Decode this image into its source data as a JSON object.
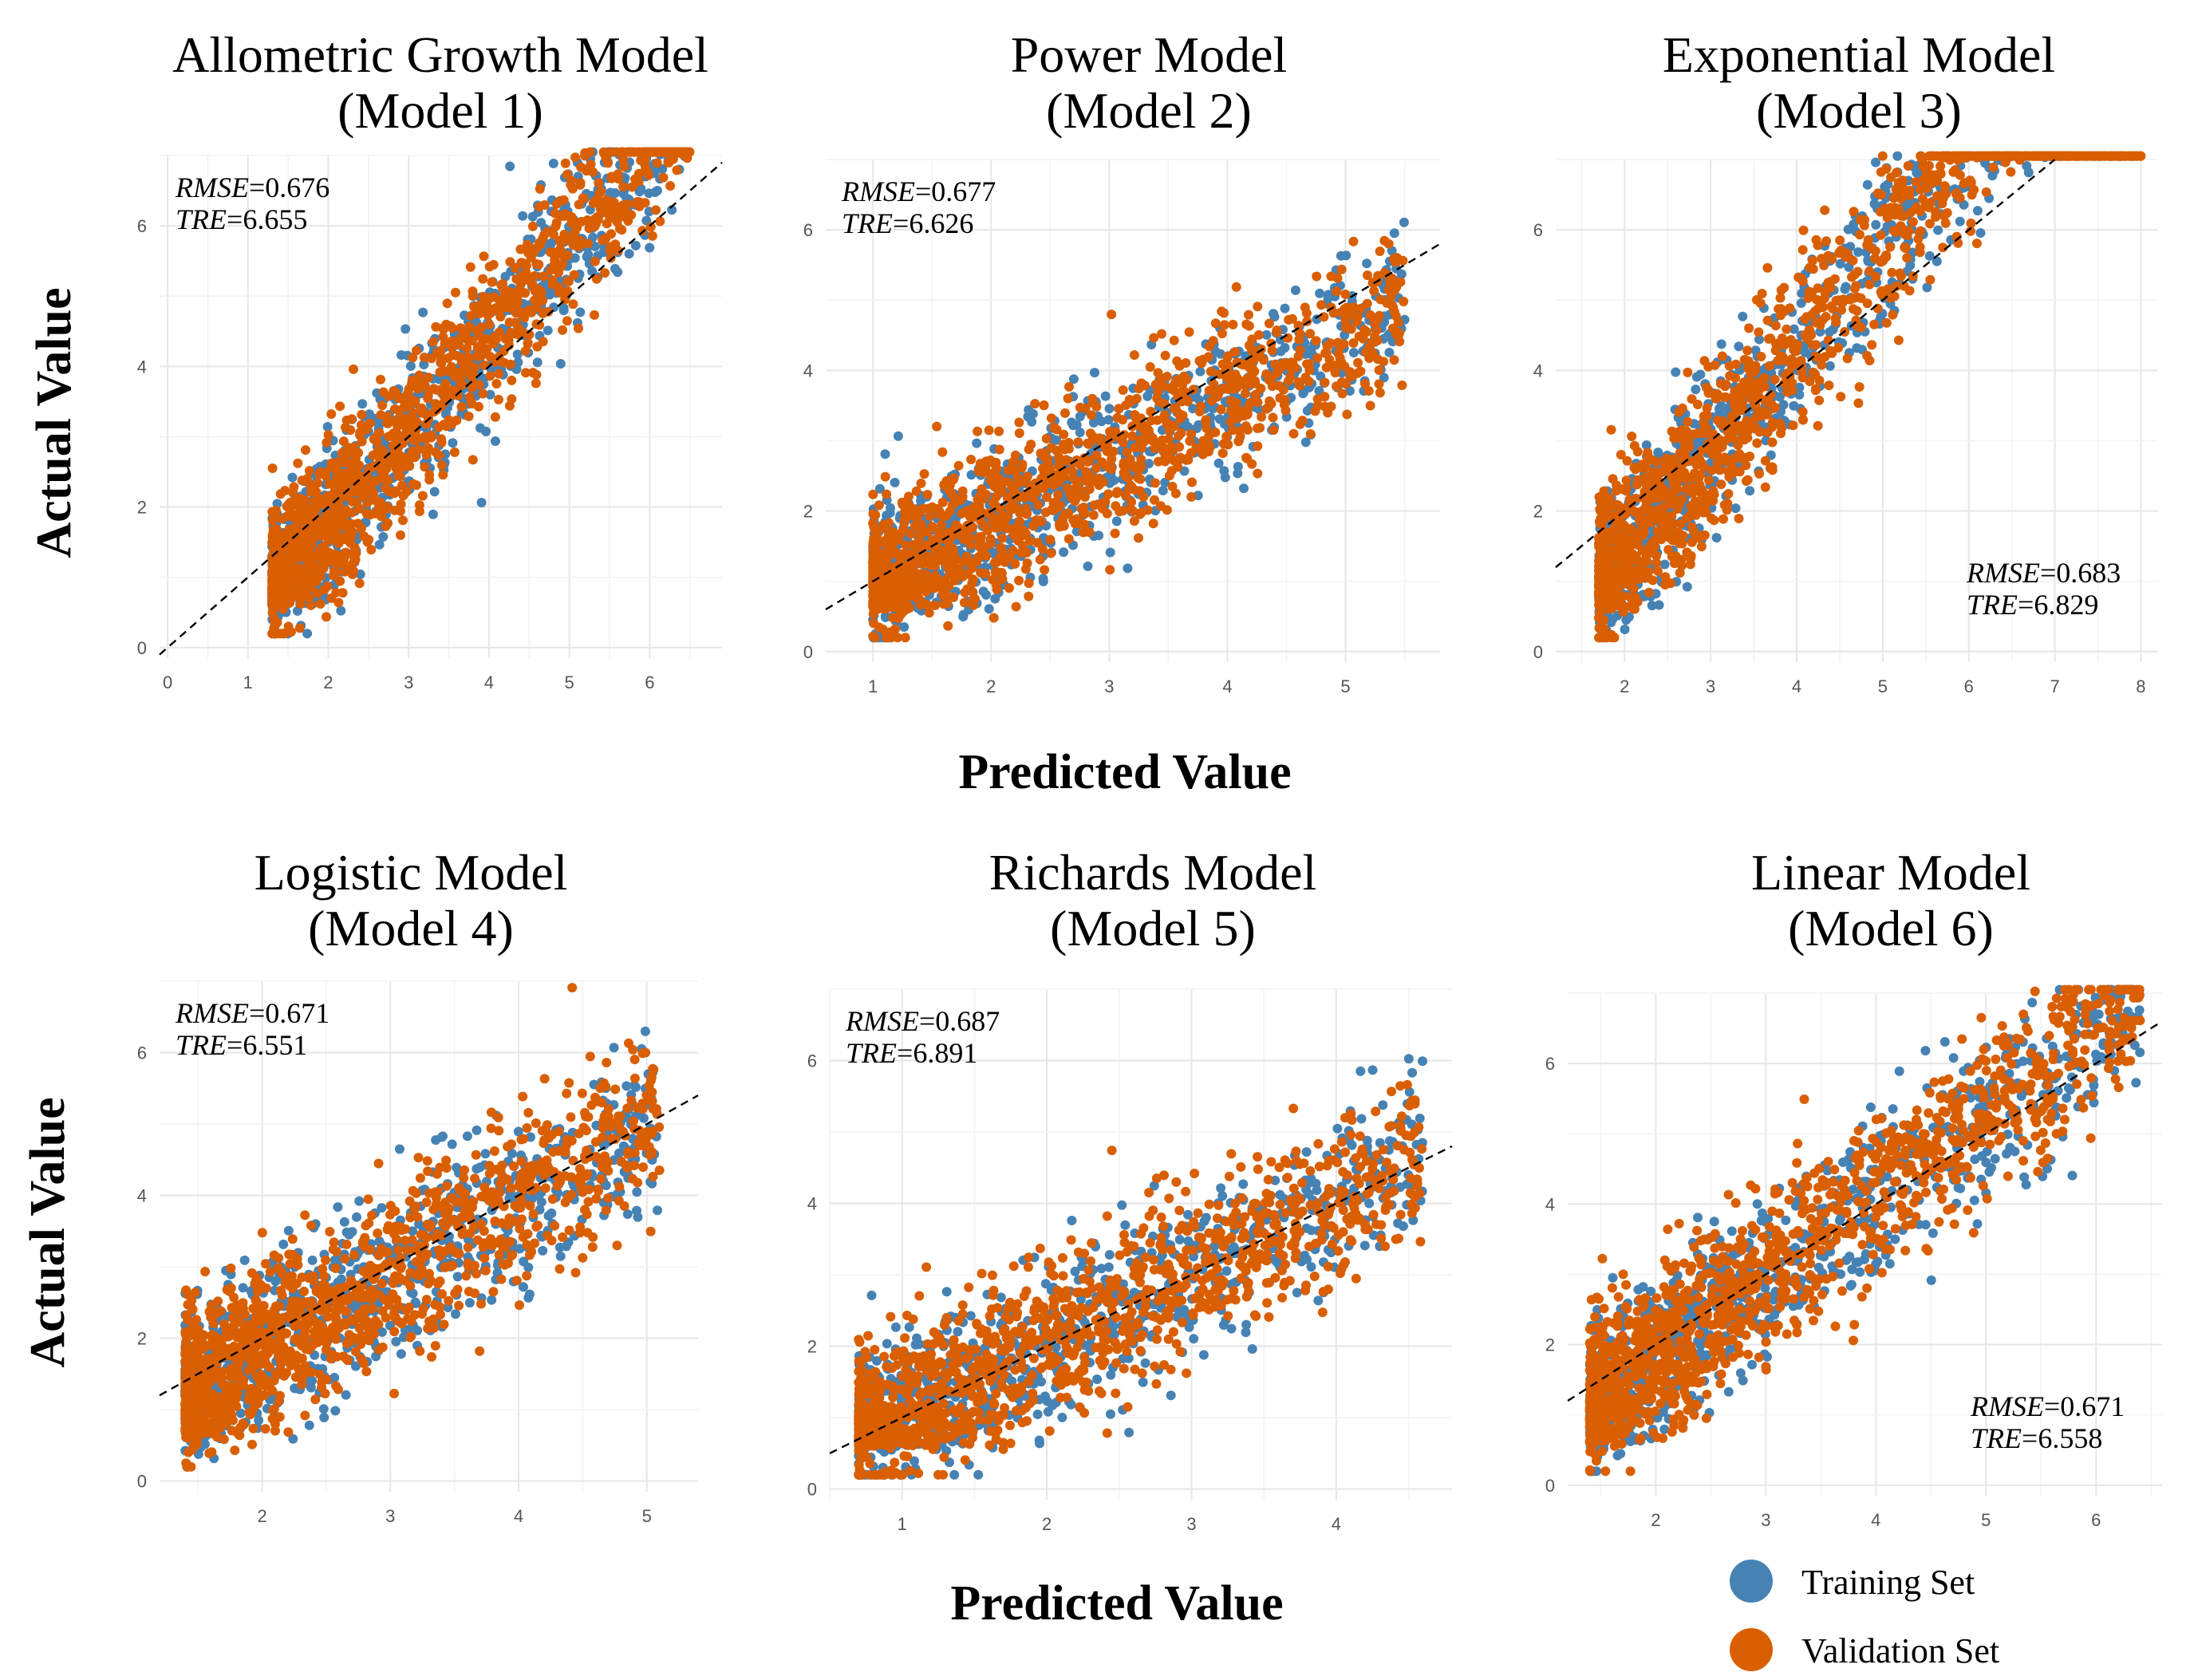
{
  "colors": {
    "training": "#4682B4",
    "validation": "#D95F02",
    "refline": "#000000"
  },
  "labels": {
    "x": "Predicted Value",
    "y": "Actual Value"
  },
  "legend": [
    {
      "label": "Training Set",
      "color": "#4682B4"
    },
    {
      "label": "Validation Set",
      "color": "#D95F02"
    }
  ],
  "chart_data": [
    {
      "type": "scatter",
      "title": [
        "Allometric Growth Model",
        "(Model 1)"
      ],
      "rmse": "0.676",
      "tre": "6.655",
      "stat_corner": "top-left",
      "xlim": [
        -0.1,
        6.9
      ],
      "ylim": [
        -0.15,
        7.0
      ],
      "xticks": [
        0,
        1,
        2,
        3,
        4,
        5,
        6
      ],
      "yticks": [
        0,
        2,
        4,
        6
      ],
      "cloud": {
        "xmin": 1.3,
        "xmax": 6.5,
        "center_slope": 1.35,
        "center_intercept": -1.0,
        "spread": 0.55
      },
      "line": {
        "slope": 1.0,
        "intercept": 0.0
      }
    },
    {
      "type": "scatter",
      "title": [
        "Power Model",
        "(Model 2)"
      ],
      "rmse": "0.677",
      "tre": "6.626",
      "stat_corner": "top-left",
      "xlim": [
        0.6,
        5.8
      ],
      "ylim": [
        -0.15,
        7.0
      ],
      "xticks": [
        1,
        2,
        3,
        4,
        5
      ],
      "yticks": [
        0,
        2,
        4,
        6
      ],
      "cloud": {
        "xmin": 1.0,
        "xmax": 5.5,
        "center_slope": 0.9,
        "center_intercept": 0.0,
        "spread": 0.55
      },
      "line": {
        "slope": 1.0,
        "intercept": 0.0
      }
    },
    {
      "type": "scatter",
      "title": [
        "Exponential Model",
        "(Model 3)"
      ],
      "rmse": "0.683",
      "tre": "6.829",
      "stat_corner": "bottom-right",
      "xlim": [
        1.2,
        8.2
      ],
      "ylim": [
        -0.15,
        7.0
      ],
      "xticks": [
        2,
        3,
        4,
        5,
        6,
        7,
        8
      ],
      "yticks": [
        0,
        2,
        4,
        6
      ],
      "cloud": {
        "xmin": 1.7,
        "xmax": 8.0,
        "center_slope": 1.45,
        "center_intercept": -1.5,
        "spread": 0.6
      },
      "line": {
        "slope": 1.0,
        "intercept": 0.0
      }
    },
    {
      "type": "scatter",
      "title": [
        "Logistic Model",
        "(Model 4)"
      ],
      "rmse": "0.671",
      "tre": "6.551",
      "stat_corner": "top-left",
      "xlim": [
        1.2,
        5.4
      ],
      "ylim": [
        -0.15,
        7.0
      ],
      "xticks": [
        2,
        3,
        4,
        5
      ],
      "yticks": [
        0,
        2,
        4,
        6
      ],
      "cloud": {
        "xmin": 1.4,
        "xmax": 5.1,
        "center_slope": 1.05,
        "center_intercept": -0.3,
        "spread": 0.6
      },
      "line": {
        "slope": 1.0,
        "intercept": 0.0
      }
    },
    {
      "type": "scatter",
      "title": [
        "Richards Model",
        "(Model 5)"
      ],
      "rmse": "0.687",
      "tre": "6.891",
      "stat_corner": "top-left",
      "xlim": [
        0.5,
        4.8
      ],
      "ylim": [
        -0.15,
        7.0
      ],
      "xticks": [
        1,
        2,
        3,
        4
      ],
      "yticks": [
        0,
        2,
        4,
        6
      ],
      "cloud": {
        "xmin": 0.7,
        "xmax": 4.6,
        "center_slope": 1.05,
        "center_intercept": -0.1,
        "spread": 0.6
      },
      "line": {
        "slope": 1.0,
        "intercept": 0.0
      }
    },
    {
      "type": "scatter",
      "title": [
        "Linear Model",
        "(Model 6)"
      ],
      "rmse": "0.671",
      "tre": "6.558",
      "stat_corner": "bottom-right",
      "xlim": [
        1.2,
        6.6
      ],
      "ylim": [
        -0.15,
        7.0
      ],
      "xticks": [
        2,
        3,
        4,
        5,
        6
      ],
      "yticks": [
        0,
        2,
        4,
        6
      ],
      "cloud": {
        "xmin": 1.4,
        "xmax": 6.4,
        "center_slope": 1.15,
        "center_intercept": -0.5,
        "spread": 0.6
      },
      "line": {
        "slope": 1.0,
        "intercept": 0.0
      }
    }
  ]
}
